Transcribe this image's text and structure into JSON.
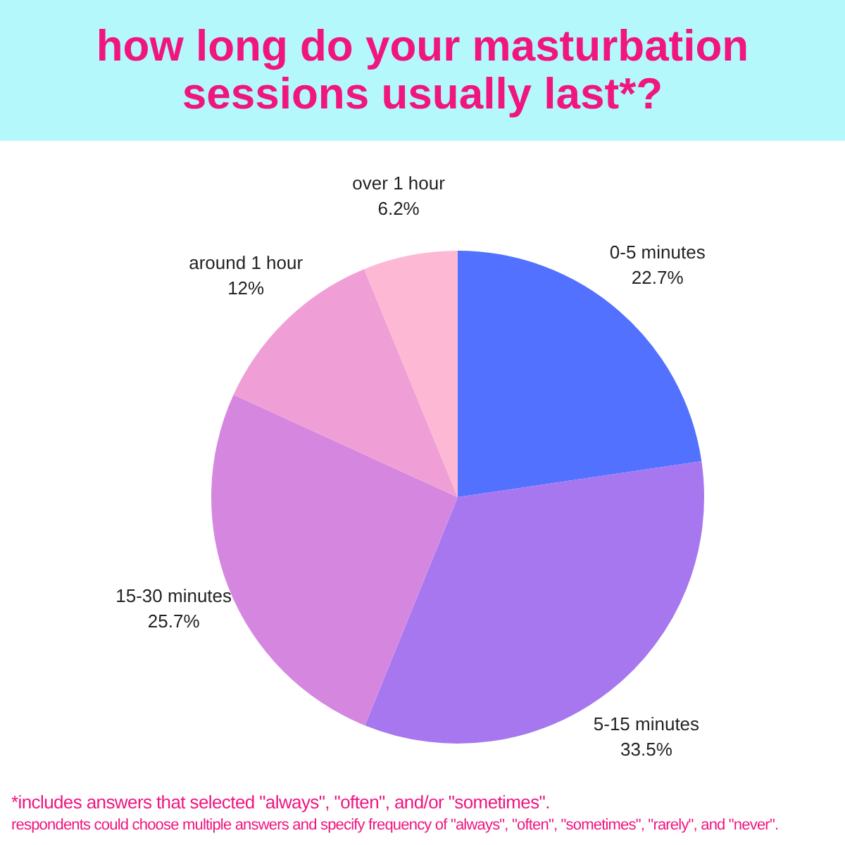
{
  "chart_data": {
    "type": "pie",
    "title": "how long do your masturbation sessions usually last*?",
    "categories": [
      "0-5 minutes",
      "5-15 minutes",
      "15-30 minutes",
      "around 1 hour",
      "over 1 hour"
    ],
    "values": [
      22.7,
      33.5,
      25.7,
      12,
      6.2
    ],
    "value_labels": [
      "22.7%",
      "33.5%",
      "25.7%",
      "12%",
      "6.2%"
    ],
    "colors": [
      "#5271ff",
      "#a777ef",
      "#d587e0",
      "#f09fd6",
      "#fdb8d4"
    ],
    "legend": false,
    "annotations": [
      "*includes answers that selected \"always\", \"often\", and/or \"sometimes\".",
      "respondents could choose multiple answers and specify frequency of \"always\", \"often\", \"sometimes\", \"rarely\", and \"never\"."
    ]
  }
}
